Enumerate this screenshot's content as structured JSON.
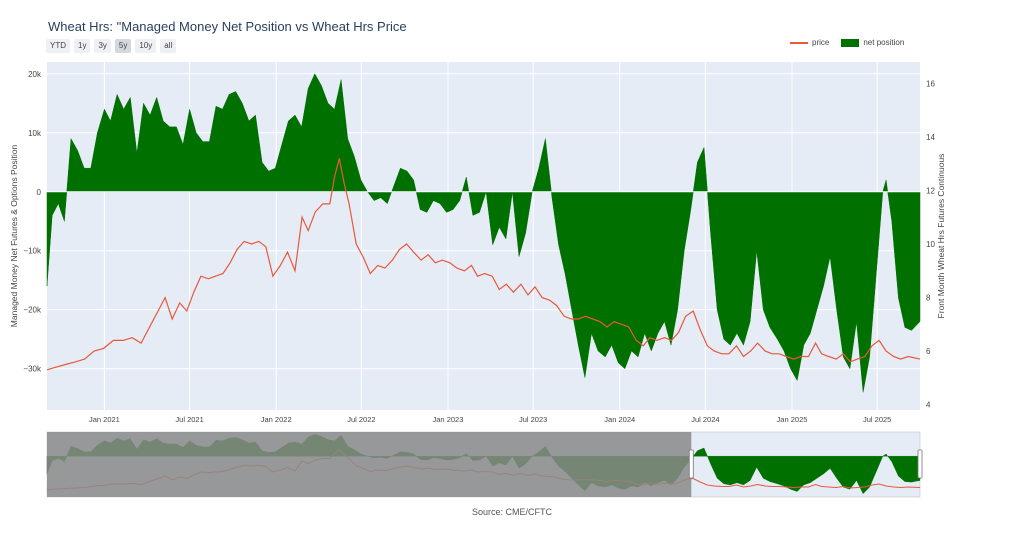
{
  "title": "Wheat Hrs: \"Managed Money Net Position vs Wheat Hrs Price",
  "range_buttons": [
    {
      "label": "YTD",
      "active": false
    },
    {
      "label": "1y",
      "active": false
    },
    {
      "label": "3y",
      "active": false
    },
    {
      "label": "5y",
      "active": true
    },
    {
      "label": "10y",
      "active": false
    },
    {
      "label": "all",
      "active": false
    }
  ],
  "legend": {
    "price": "price",
    "net_position": "net position"
  },
  "source": "Source: CME/CFTC",
  "colors": {
    "price": "#e8583b",
    "net_position": "#007000",
    "plot_bg": "#e5ecf6",
    "grid": "#ffffff",
    "selector_mask": "#8a8a8a"
  },
  "chart_data": {
    "type": "area",
    "title": "Wheat Hrs: \"Managed Money Net Position vs Wheat Hrs Price",
    "x_range": [
      "2020-09-01",
      "2025-09-30"
    ],
    "x_tick_labels": [
      "Jan 2021",
      "Jul 2021",
      "Jan 2022",
      "Jul 2022",
      "Jan 2023",
      "Jul 2023",
      "Jan 2024",
      "Jul 2024",
      "Jan 2025",
      "Jul 2025"
    ],
    "x_tick_dates": [
      "2021-01-01",
      "2021-07-01",
      "2022-01-01",
      "2022-07-01",
      "2023-01-01",
      "2023-07-01",
      "2024-01-01",
      "2024-07-01",
      "2025-01-01",
      "2025-07-01"
    ],
    "y_left": {
      "label": "Managed Money Net Futures & Options Position",
      "range": [
        -37000,
        22000
      ],
      "ticks": [
        -30000,
        -20000,
        -10000,
        0,
        10000,
        20000
      ],
      "tick_labels": [
        "−30k",
        "−20k",
        "−10k",
        "0",
        "10k",
        "20k"
      ]
    },
    "y_right": {
      "label": "Front Month Wheat Hrs Futures Continuous",
      "range": [
        3.8,
        16.8
      ],
      "ticks": [
        4,
        6,
        8,
        10,
        12,
        14,
        16
      ],
      "tick_labels": [
        "4",
        "6",
        "8",
        "10",
        "12",
        "14",
        "16"
      ]
    },
    "grid": true,
    "legend_position": "top-right",
    "range_selector": {
      "selected_start": "2024-06-01",
      "selected_end": "2025-09-30"
    },
    "series": [
      {
        "name": "net position",
        "axis": "left",
        "fill": "tozero",
        "points": [
          [
            "2020-09-01",
            -16000
          ],
          [
            "2020-09-12",
            -4000
          ],
          [
            "2020-09-25",
            -2000
          ],
          [
            "2020-10-08",
            -5000
          ],
          [
            "2020-10-22",
            9000
          ],
          [
            "2020-11-05",
            7000
          ],
          [
            "2020-11-19",
            4000
          ],
          [
            "2020-12-03",
            4000
          ],
          [
            "2020-12-17",
            10000
          ],
          [
            "2021-01-01",
            14000
          ],
          [
            "2021-01-14",
            12000
          ],
          [
            "2021-01-28",
            16500
          ],
          [
            "2021-02-11",
            14000
          ],
          [
            "2021-02-25",
            16000
          ],
          [
            "2021-03-11",
            6500
          ],
          [
            "2021-03-25",
            15000
          ],
          [
            "2021-04-08",
            13000
          ],
          [
            "2021-04-22",
            16000
          ],
          [
            "2021-05-06",
            12000
          ],
          [
            "2021-05-20",
            11000
          ],
          [
            "2021-06-03",
            11000
          ],
          [
            "2021-06-17",
            8000
          ],
          [
            "2021-07-01",
            14000
          ],
          [
            "2021-07-15",
            10000
          ],
          [
            "2021-07-29",
            8500
          ],
          [
            "2021-08-12",
            8500
          ],
          [
            "2021-08-26",
            14500
          ],
          [
            "2021-09-09",
            14000
          ],
          [
            "2021-09-23",
            16500
          ],
          [
            "2021-10-07",
            17000
          ],
          [
            "2021-10-21",
            15000
          ],
          [
            "2021-11-04",
            12000
          ],
          [
            "2021-11-18",
            13000
          ],
          [
            "2021-12-02",
            5000
          ],
          [
            "2021-12-16",
            3500
          ],
          [
            "2021-12-30",
            4000
          ],
          [
            "2022-01-13",
            8000
          ],
          [
            "2022-01-27",
            12000
          ],
          [
            "2022-02-10",
            13000
          ],
          [
            "2022-02-24",
            11000
          ],
          [
            "2022-03-10",
            17500
          ],
          [
            "2022-03-24",
            20000
          ],
          [
            "2022-04-07",
            18000
          ],
          [
            "2022-04-21",
            15000
          ],
          [
            "2022-05-05",
            14000
          ],
          [
            "2022-05-19",
            19000
          ],
          [
            "2022-06-02",
            9000
          ],
          [
            "2022-06-16",
            6000
          ],
          [
            "2022-06-30",
            2000
          ],
          [
            "2022-07-14",
            0
          ],
          [
            "2022-07-28",
            -1500
          ],
          [
            "2022-08-11",
            -1000
          ],
          [
            "2022-08-25",
            -2000
          ],
          [
            "2022-09-08",
            1000
          ],
          [
            "2022-09-22",
            4000
          ],
          [
            "2022-10-06",
            3500
          ],
          [
            "2022-10-20",
            2000
          ],
          [
            "2022-11-03",
            -3000
          ],
          [
            "2022-11-17",
            -3500
          ],
          [
            "2022-12-01",
            -1500
          ],
          [
            "2022-12-15",
            -2000
          ],
          [
            "2022-12-29",
            -3500
          ],
          [
            "2023-01-12",
            -3000
          ],
          [
            "2023-01-26",
            -1500
          ],
          [
            "2023-02-09",
            2500
          ],
          [
            "2023-02-23",
            -4000
          ],
          [
            "2023-03-09",
            -3500
          ],
          [
            "2023-03-23",
            0
          ],
          [
            "2023-04-06",
            -9000
          ],
          [
            "2023-04-20",
            -6000
          ],
          [
            "2023-05-04",
            -8000
          ],
          [
            "2023-05-18",
            0
          ],
          [
            "2023-06-01",
            -11000
          ],
          [
            "2023-06-15",
            -7000
          ],
          [
            "2023-06-29",
            0
          ],
          [
            "2023-07-13",
            4000
          ],
          [
            "2023-07-27",
            9000
          ],
          [
            "2023-08-10",
            -1000
          ],
          [
            "2023-08-24",
            -9000
          ],
          [
            "2023-09-07",
            -14000
          ],
          [
            "2023-09-21",
            -20000
          ],
          [
            "2023-10-05",
            -26000
          ],
          [
            "2023-10-19",
            -31500
          ],
          [
            "2023-11-02",
            -24000
          ],
          [
            "2023-11-16",
            -27000
          ],
          [
            "2023-12-01",
            -28000
          ],
          [
            "2023-12-15",
            -26000
          ],
          [
            "2023-12-29",
            -29000
          ],
          [
            "2024-01-12",
            -30000
          ],
          [
            "2024-01-26",
            -27000
          ],
          [
            "2024-02-09",
            -28000
          ],
          [
            "2024-02-23",
            -24000
          ],
          [
            "2024-03-08",
            -27000
          ],
          [
            "2024-03-22",
            -24000
          ],
          [
            "2024-04-05",
            -22000
          ],
          [
            "2024-04-19",
            -26000
          ],
          [
            "2024-05-03",
            -20000
          ],
          [
            "2024-05-17",
            -10000
          ],
          [
            "2024-05-31",
            -3000
          ],
          [
            "2024-06-14",
            5000
          ],
          [
            "2024-06-28",
            7500
          ],
          [
            "2024-07-12",
            -7000
          ],
          [
            "2024-07-26",
            -20000
          ],
          [
            "2024-08-09",
            -25000
          ],
          [
            "2024-08-23",
            -26000
          ],
          [
            "2024-09-06",
            -24000
          ],
          [
            "2024-09-20",
            -26000
          ],
          [
            "2024-10-04",
            -22000
          ],
          [
            "2024-10-18",
            -10000
          ],
          [
            "2024-11-01",
            -20000
          ],
          [
            "2024-11-15",
            -23000
          ],
          [
            "2024-12-01",
            -25000
          ],
          [
            "2024-12-15",
            -27000
          ],
          [
            "2024-12-29",
            -30000
          ],
          [
            "2025-01-12",
            -32000
          ],
          [
            "2025-01-26",
            -26000
          ],
          [
            "2025-02-09",
            -24000
          ],
          [
            "2025-02-23",
            -20000
          ],
          [
            "2025-03-09",
            -16000
          ],
          [
            "2025-03-23",
            -11000
          ],
          [
            "2025-04-06",
            -20000
          ],
          [
            "2025-04-20",
            -28000
          ],
          [
            "2025-05-04",
            -30000
          ],
          [
            "2025-05-18",
            -22000
          ],
          [
            "2025-06-01",
            -34000
          ],
          [
            "2025-06-15",
            -28000
          ],
          [
            "2025-06-29",
            -14000
          ],
          [
            "2025-07-13",
            0
          ],
          [
            "2025-07-20",
            2000
          ],
          [
            "2025-08-01",
            -5000
          ],
          [
            "2025-08-15",
            -18000
          ],
          [
            "2025-08-29",
            -23000
          ],
          [
            "2025-09-12",
            -23500
          ],
          [
            "2025-09-30",
            -22000
          ]
        ]
      },
      {
        "name": "price",
        "axis": "right",
        "points": [
          [
            "2020-09-01",
            5.3
          ],
          [
            "2020-09-20",
            5.4
          ],
          [
            "2020-10-10",
            5.5
          ],
          [
            "2020-11-01",
            5.6
          ],
          [
            "2020-11-20",
            5.7
          ],
          [
            "2020-12-10",
            6.0
          ],
          [
            "2020-12-30",
            6.1
          ],
          [
            "2021-01-20",
            6.4
          ],
          [
            "2021-02-10",
            6.4
          ],
          [
            "2021-03-01",
            6.5
          ],
          [
            "2021-03-20",
            6.3
          ],
          [
            "2021-04-10",
            7.0
          ],
          [
            "2021-04-25",
            7.5
          ],
          [
            "2021-05-10",
            8.0
          ],
          [
            "2021-05-25",
            7.2
          ],
          [
            "2021-06-10",
            7.8
          ],
          [
            "2021-06-25",
            7.5
          ],
          [
            "2021-07-10",
            8.2
          ],
          [
            "2021-07-25",
            8.8
          ],
          [
            "2021-08-10",
            8.7
          ],
          [
            "2021-08-25",
            8.8
          ],
          [
            "2021-09-10",
            8.9
          ],
          [
            "2021-09-25",
            9.3
          ],
          [
            "2021-10-10",
            9.8
          ],
          [
            "2021-10-25",
            10.1
          ],
          [
            "2021-11-10",
            10.0
          ],
          [
            "2021-11-25",
            10.1
          ],
          [
            "2021-12-10",
            9.9
          ],
          [
            "2021-12-25",
            8.8
          ],
          [
            "2022-01-10",
            9.2
          ],
          [
            "2022-01-25",
            9.7
          ],
          [
            "2022-02-10",
            9.0
          ],
          [
            "2022-02-25",
            11.0
          ],
          [
            "2022-03-10",
            10.5
          ],
          [
            "2022-03-25",
            11.2
          ],
          [
            "2022-04-10",
            11.5
          ],
          [
            "2022-04-25",
            11.5
          ],
          [
            "2022-05-05",
            12.5
          ],
          [
            "2022-05-15",
            13.2
          ],
          [
            "2022-05-25",
            12.3
          ],
          [
            "2022-06-05",
            11.5
          ],
          [
            "2022-06-20",
            10.0
          ],
          [
            "2022-07-05",
            9.5
          ],
          [
            "2022-07-20",
            8.9
          ],
          [
            "2022-08-05",
            9.2
          ],
          [
            "2022-08-20",
            9.1
          ],
          [
            "2022-09-05",
            9.4
          ],
          [
            "2022-09-20",
            9.8
          ],
          [
            "2022-10-05",
            10.0
          ],
          [
            "2022-10-20",
            9.7
          ],
          [
            "2022-11-05",
            9.4
          ],
          [
            "2022-11-20",
            9.6
          ],
          [
            "2022-12-05",
            9.3
          ],
          [
            "2022-12-20",
            9.4
          ],
          [
            "2023-01-05",
            9.3
          ],
          [
            "2023-01-20",
            9.1
          ],
          [
            "2023-02-05",
            9.0
          ],
          [
            "2023-02-20",
            9.2
          ],
          [
            "2023-03-05",
            8.8
          ],
          [
            "2023-03-20",
            8.9
          ],
          [
            "2023-04-05",
            8.8
          ],
          [
            "2023-04-20",
            8.3
          ],
          [
            "2023-05-05",
            8.5
          ],
          [
            "2023-05-20",
            8.2
          ],
          [
            "2023-06-05",
            8.5
          ],
          [
            "2023-06-20",
            8.1
          ],
          [
            "2023-07-05",
            8.4
          ],
          [
            "2023-07-20",
            8.0
          ],
          [
            "2023-08-05",
            7.9
          ],
          [
            "2023-08-20",
            7.7
          ],
          [
            "2023-09-05",
            7.3
          ],
          [
            "2023-09-20",
            7.2
          ],
          [
            "2023-10-05",
            7.2
          ],
          [
            "2023-10-20",
            7.3
          ],
          [
            "2023-11-05",
            7.2
          ],
          [
            "2023-11-20",
            7.1
          ],
          [
            "2023-12-05",
            6.9
          ],
          [
            "2023-12-20",
            7.1
          ],
          [
            "2024-01-05",
            7.0
          ],
          [
            "2024-01-20",
            6.9
          ],
          [
            "2024-02-05",
            6.4
          ],
          [
            "2024-02-20",
            6.2
          ],
          [
            "2024-03-05",
            6.5
          ],
          [
            "2024-03-20",
            6.4
          ],
          [
            "2024-04-05",
            6.5
          ],
          [
            "2024-04-20",
            6.4
          ],
          [
            "2024-05-05",
            6.7
          ],
          [
            "2024-05-20",
            7.3
          ],
          [
            "2024-06-05",
            7.5
          ],
          [
            "2024-06-20",
            6.8
          ],
          [
            "2024-07-05",
            6.2
          ],
          [
            "2024-07-20",
            6.0
          ],
          [
            "2024-08-05",
            5.9
          ],
          [
            "2024-08-20",
            5.9
          ],
          [
            "2024-09-05",
            6.2
          ],
          [
            "2024-09-20",
            5.8
          ],
          [
            "2024-10-05",
            6.0
          ],
          [
            "2024-10-20",
            6.3
          ],
          [
            "2024-11-05",
            6.0
          ],
          [
            "2024-11-20",
            5.9
          ],
          [
            "2024-12-05",
            5.9
          ],
          [
            "2024-12-20",
            5.8
          ],
          [
            "2025-01-05",
            5.7
          ],
          [
            "2025-01-20",
            5.8
          ],
          [
            "2025-02-05",
            5.8
          ],
          [
            "2025-02-20",
            6.3
          ],
          [
            "2025-03-05",
            5.9
          ],
          [
            "2025-03-20",
            5.8
          ],
          [
            "2025-04-05",
            5.7
          ],
          [
            "2025-04-20",
            5.9
          ],
          [
            "2025-05-05",
            5.6
          ],
          [
            "2025-05-20",
            5.7
          ],
          [
            "2025-06-05",
            5.8
          ],
          [
            "2025-06-20",
            6.2
          ],
          [
            "2025-07-05",
            6.4
          ],
          [
            "2025-07-20",
            6.0
          ],
          [
            "2025-08-05",
            5.8
          ],
          [
            "2025-08-20",
            5.7
          ],
          [
            "2025-09-05",
            5.8
          ],
          [
            "2025-09-30",
            5.7
          ]
        ]
      }
    ]
  }
}
